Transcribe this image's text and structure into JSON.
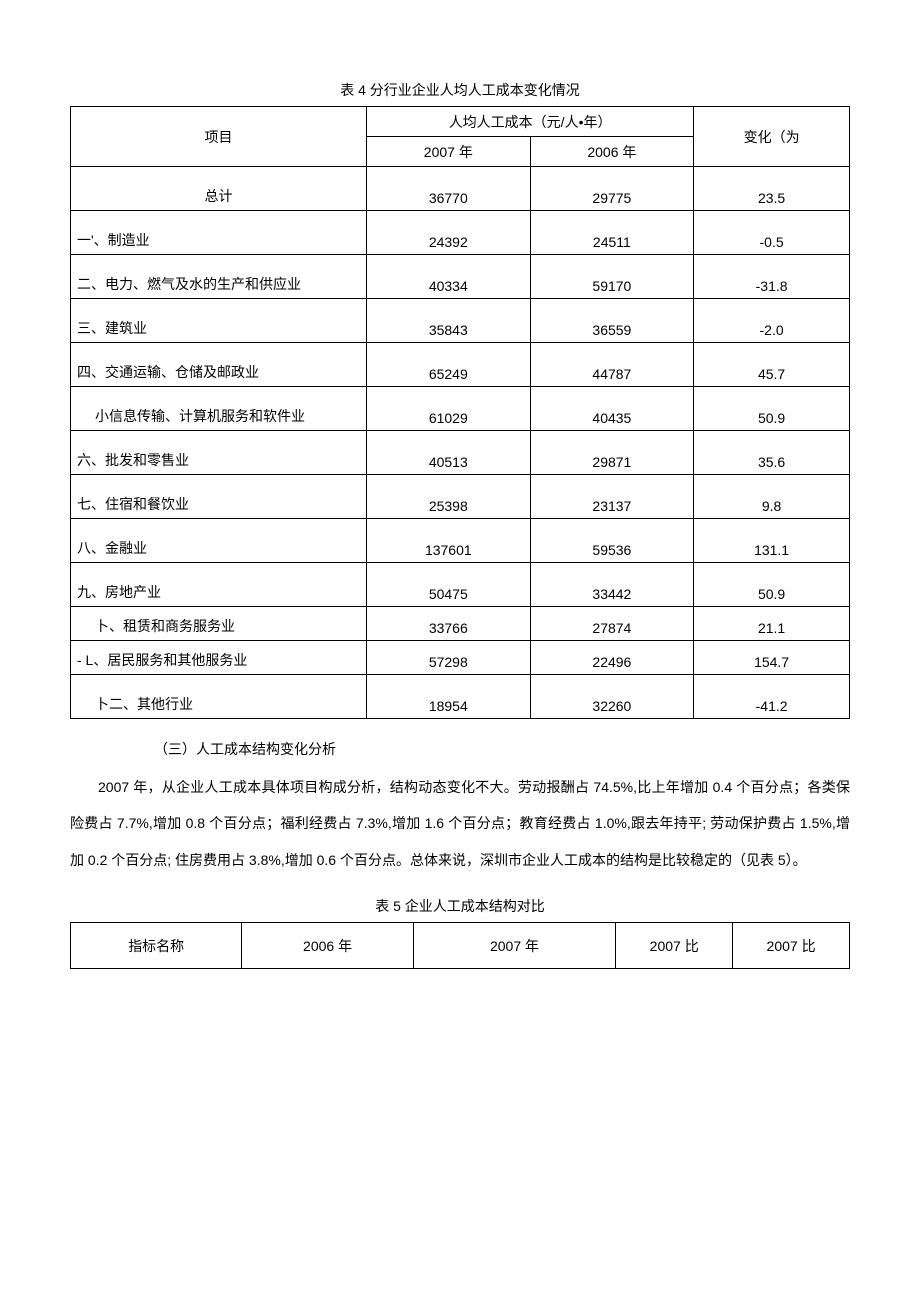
{
  "table4": {
    "title": "表 4 分行业企业人均人工成本变化情况",
    "header": {
      "col_project": "项目",
      "col_group": "人均人工成本（元/人•年）",
      "col_2007": "2007 年",
      "col_2006": "2006 年",
      "col_change": "变化（为"
    },
    "rows": [
      {
        "label": "总计",
        "v2007": "36770",
        "v2006": "29775",
        "change": "23.5",
        "indent": false,
        "centerLabel": true
      },
      {
        "label": "一'、制造业",
        "v2007": "24392",
        "v2006": "24511",
        "change": "-0.5",
        "indent": false
      },
      {
        "label": "二、电力、燃气及水的生产和供应业",
        "v2007": "40334",
        "v2006": "59170",
        "change": "-31.8",
        "indent": false
      },
      {
        "label": "三、建筑业",
        "v2007": "35843",
        "v2006": "36559",
        "change": "-2.0",
        "indent": false
      },
      {
        "label": "四、交通运输、仓储及邮政业",
        "v2007": "65249",
        "v2006": "44787",
        "change": "45.7",
        "indent": false
      },
      {
        "label": "小信息传输、计算机服务和软件业",
        "v2007": "61029",
        "v2006": "40435",
        "change": "50.9",
        "indent": true
      },
      {
        "label": "六、批发和零售业",
        "v2007": "40513",
        "v2006": "29871",
        "change": "35.6",
        "indent": false
      },
      {
        "label": "七、住宿和餐饮业",
        "v2007": "25398",
        "v2006": "23137",
        "change": "9.8",
        "indent": false
      },
      {
        "label": "八、金融业",
        "v2007": "137601",
        "v2006": "59536",
        "change": "131.1",
        "indent": false
      },
      {
        "label": "九、房地产业",
        "v2007": "50475",
        "v2006": "33442",
        "change": "50.9",
        "indent": false
      },
      {
        "label": "卜、租赁和商务服务业",
        "v2007": "33766",
        "v2006": "27874",
        "change": "21.1",
        "indent": true,
        "small": true
      },
      {
        "label": "- L、居民服务和其他服务业",
        "v2007": "57298",
        "v2006": "22496",
        "change": "154.7",
        "indent": false,
        "small": true
      },
      {
        "label": "卜二、其他行业",
        "v2007": "18954",
        "v2006": "32260",
        "change": "-41.2",
        "indent": true
      }
    ]
  },
  "subheading": "（三）人工成本结构变化分析",
  "paragraph": "2007 年，从企业人工成本具体项目构成分析，结构动态变化不大。劳动报酬占 74.5%,比上年增加 0.4 个百分点；各类保险费占 7.7%,增加 0.8 个百分点；福利经费占 7.3%,增加 1.6 个百分点；教育经费占 1.0%,跟去年持平; 劳动保护费占 1.5%,增加 0.2 个百分点; 住房费用占 3.8%,增加 0.6 个百分点。总体来说，深圳市企业人工成本的结构是比较稳定的（见表 5）。",
  "table5": {
    "title": "表 5 企业人工成本结构对比",
    "header": {
      "c1": "指标名称",
      "c2": "2006 年",
      "c3": "2007 年",
      "c4": "2007 比",
      "c5": "2007 比"
    }
  },
  "style": {
    "font_family": "SimSun",
    "font_size_pt": 10.5,
    "text_color": "#000000",
    "border_color": "#000000",
    "background": "#ffffff",
    "line_height": 2.6
  }
}
